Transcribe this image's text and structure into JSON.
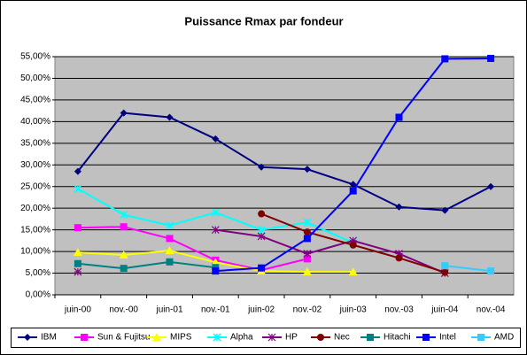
{
  "chart_data": {
    "type": "line",
    "title": "Puissance Rmax par fondeur",
    "categories": [
      "juin-00",
      "nov.-00",
      "juin-01",
      "nov.-01",
      "juin-02",
      "nov.-02",
      "juin-03",
      "nov.-03",
      "juin-04",
      "nov.-04"
    ],
    "ylim": [
      0,
      55
    ],
    "yticks": [
      {
        "value": 0,
        "label": "0,00%"
      },
      {
        "value": 5,
        "label": "5,00%"
      },
      {
        "value": 10,
        "label": "10,00%"
      },
      {
        "value": 15,
        "label": "15,00%"
      },
      {
        "value": 20,
        "label": "20,00%"
      },
      {
        "value": 25,
        "label": "25,00%"
      },
      {
        "value": 30,
        "label": "30,00%"
      },
      {
        "value": 35,
        "label": "35,00%"
      },
      {
        "value": 40,
        "label": "40,00%"
      },
      {
        "value": 45,
        "label": "45,00%"
      },
      {
        "value": 50,
        "label": "50,00%"
      },
      {
        "value": 55,
        "label": "55,00%"
      }
    ],
    "grid": true,
    "legend": "bottom",
    "series": [
      {
        "name": "IBM",
        "color": "#000080",
        "marker": "diamond",
        "values": [
          28.5,
          42,
          41,
          36,
          29.5,
          29,
          25.5,
          20.3,
          19.5,
          25
        ]
      },
      {
        "name": "Sun & Fujitsu",
        "color": "#ff00ff",
        "marker": "square",
        "values": [
          15.5,
          15.7,
          13,
          8,
          5.7,
          8.3,
          null,
          null,
          null,
          null
        ]
      },
      {
        "name": "MIPS",
        "color": "#ffff00",
        "marker": "triangle",
        "values": [
          9.8,
          9.2,
          10.2,
          7.5,
          5.5,
          5.3,
          5.3,
          null,
          null,
          null
        ]
      },
      {
        "name": "Alpha",
        "color": "#00ffff",
        "marker": "star",
        "values": [
          24.5,
          18.5,
          16,
          19,
          15,
          16.7,
          12,
          null,
          null,
          null
        ]
      },
      {
        "name": "HP",
        "color": "#800080",
        "marker": "asterisk",
        "values": [
          5.3,
          null,
          null,
          15,
          13.5,
          9.5,
          12.5,
          9.5,
          5,
          null
        ]
      },
      {
        "name": "Nec",
        "color": "#800000",
        "marker": "circle",
        "values": [
          null,
          null,
          null,
          null,
          18.7,
          14.5,
          11.5,
          8.5,
          5.2,
          null
        ]
      },
      {
        "name": "Hitachi",
        "color": "#008080",
        "marker": "square",
        "values": [
          7.2,
          6.1,
          7.6,
          6.3,
          null,
          null,
          null,
          null,
          null,
          null
        ]
      },
      {
        "name": "Intel",
        "color": "#0000ff",
        "marker": "square",
        "values": [
          null,
          null,
          null,
          5.5,
          6.2,
          13,
          24,
          41,
          54.5,
          54.6
        ]
      },
      {
        "name": "AMD",
        "color": "#33ccff",
        "marker": "square",
        "values": [
          null,
          null,
          null,
          null,
          null,
          null,
          null,
          null,
          6.7,
          5.5
        ]
      }
    ]
  }
}
